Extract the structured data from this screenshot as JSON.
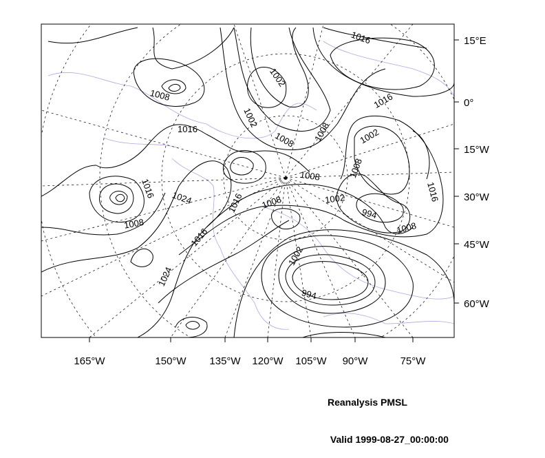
{
  "map": {
    "field": "PMSL",
    "colors": {
      "contour": "#000000",
      "coast": "#b9a3dd",
      "grid": "#000000",
      "background": "#ffffff"
    },
    "lat_labels": [
      "15°E",
      "0°",
      "15°W",
      "30°W",
      "45°W",
      "60°W"
    ],
    "lon_labels": [
      "165°W",
      "150°W",
      "135°W",
      "120°W",
      "105°W",
      "90°W",
      "75°W"
    ],
    "contour_labels": [
      "1016",
      "1002",
      "1008",
      "1016",
      "1002",
      "1016",
      "1008",
      "1008",
      "1002",
      "1008",
      "1008",
      "1016",
      "1024",
      "1016",
      "1008",
      "1002",
      "994",
      "1016",
      "1008",
      "1008",
      "1016",
      "1002",
      "1024",
      "994"
    ]
  },
  "title": {
    "line1": "Reanalysis PMSL",
    "line2": " Valid 1999-08-27_00:00:00"
  }
}
